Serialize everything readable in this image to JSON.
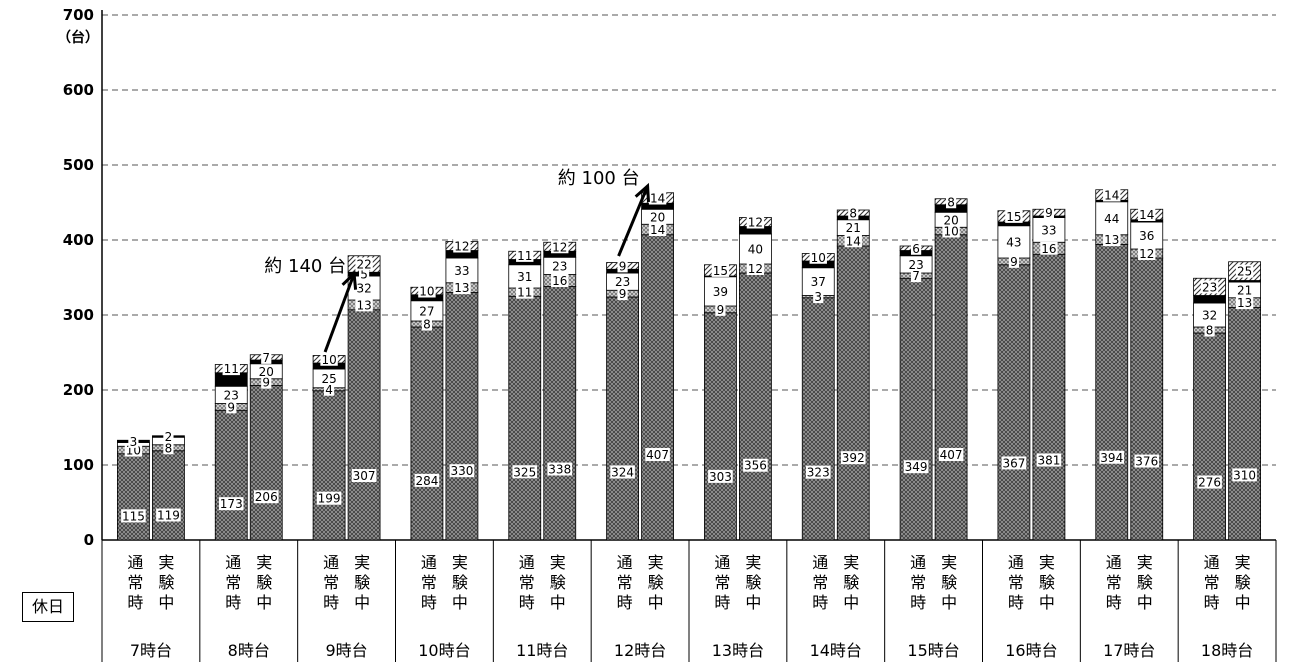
{
  "row_label": "休日",
  "y_unit": "（台）",
  "chart_data": {
    "type": "bar",
    "stacked": true,
    "ylim": [
      0,
      700
    ],
    "yticks": [
      0,
      100,
      200,
      300,
      400,
      500,
      600,
      700
    ],
    "grid": "dashed horizontal",
    "condition_labels": [
      [
        "通",
        "常",
        "時"
      ],
      [
        "実",
        "験",
        "中"
      ]
    ],
    "groups": [
      {
        "label": "7時台",
        "bars": [
          {
            "segments": [
              115,
              10,
              5,
              3
            ],
            "labels": [
              "115",
              "10",
              "",
              "3"
            ]
          },
          {
            "segments": [
              119,
              8,
              10,
              2
            ],
            "labels": [
              "119",
              "8",
              "",
              "2"
            ]
          }
        ]
      },
      {
        "label": "8時台",
        "bars": [
          {
            "segments": [
              173,
              9,
              23,
              18,
              11
            ],
            "labels": [
              "173",
              "9",
              "23",
              "",
              "11"
            ]
          },
          {
            "segments": [
              206,
              9,
              20,
              5,
              7
            ],
            "labels": [
              "206",
              "9",
              "20",
              "",
              "7"
            ]
          }
        ]
      },
      {
        "label": "9時台",
        "bars": [
          {
            "segments": [
              199,
              4,
              25,
              8,
              10
            ],
            "labels": [
              "199",
              "4",
              "25",
              "",
              "10"
            ]
          },
          {
            "segments": [
              307,
              13,
              32,
              5,
              22
            ],
            "labels": [
              "307",
              "13",
              "32",
              "5",
              "22"
            ]
          }
        ]
      },
      {
        "label": "10時台",
        "bars": [
          {
            "segments": [
              284,
              8,
              27,
              8,
              10
            ],
            "labels": [
              "284",
              "8",
              "27",
              "",
              "10"
            ]
          },
          {
            "segments": [
              330,
              13,
              33,
              10,
              12
            ],
            "labels": [
              "330",
              "13",
              "33",
              "",
              "12"
            ]
          }
        ]
      },
      {
        "label": "11時台",
        "bars": [
          {
            "segments": [
              325,
              11,
              31,
              7,
              11
            ],
            "labels": [
              "325",
              "11",
              "31",
              "",
              "11"
            ]
          },
          {
            "segments": [
              338,
              16,
              23,
              8,
              12
            ],
            "labels": [
              "338",
              "16",
              "23",
              "",
              "12"
            ]
          }
        ]
      },
      {
        "label": "12時台",
        "bars": [
          {
            "segments": [
              324,
              9,
              23,
              5,
              9
            ],
            "labels": [
              "324",
              "9",
              "23",
              "",
              "9"
            ]
          },
          {
            "segments": [
              407,
              14,
              20,
              8,
              14
            ],
            "labels": [
              "407",
              "14",
              "20",
              "",
              "14"
            ]
          }
        ]
      },
      {
        "label": "13時台",
        "bars": [
          {
            "segments": [
              303,
              9,
              39,
              1,
              15
            ],
            "labels": [
              "303",
              "9",
              "39",
              "",
              "15"
            ]
          },
          {
            "segments": [
              356,
              12,
              40,
              10,
              12
            ],
            "labels": [
              "356",
              "12",
              "40",
              "",
              "12"
            ]
          }
        ]
      },
      {
        "label": "14時台",
        "bars": [
          {
            "segments": [
              323,
              3,
              37,
              9,
              10
            ],
            "labels": [
              "323",
              "3",
              "37",
              "",
              "10"
            ]
          },
          {
            "segments": [
              392,
              14,
              21,
              5,
              8
            ],
            "labels": [
              "392",
              "14",
              "21",
              "",
              "8"
            ]
          }
        ]
      },
      {
        "label": "15時台",
        "bars": [
          {
            "segments": [
              349,
              7,
              23,
              7,
              6
            ],
            "labels": [
              "349",
              "7",
              "23",
              "",
              "6"
            ]
          },
          {
            "segments": [
              407,
              10,
              20,
              10,
              8
            ],
            "labels": [
              "407",
              "10",
              "20",
              "",
              "8"
            ]
          }
        ]
      },
      {
        "label": "16時台",
        "bars": [
          {
            "segments": [
              367,
              9,
              43,
              5,
              15
            ],
            "labels": [
              "367",
              "9",
              "43",
              "",
              "15"
            ]
          },
          {
            "segments": [
              381,
              16,
              33,
              2,
              9
            ],
            "labels": [
              "381",
              "16",
              "33",
              "",
              "9"
            ]
          }
        ]
      },
      {
        "label": "17時台",
        "bars": [
          {
            "segments": [
              394,
              13,
              44,
              2,
              14
            ],
            "labels": [
              "394",
              "13",
              "44",
              "",
              "14"
            ]
          },
          {
            "segments": [
              376,
              12,
              36,
              3,
              14
            ],
            "labels": [
              "376",
              "12",
              "36",
              "",
              "14"
            ]
          }
        ]
      },
      {
        "label": "18時台",
        "bars": [
          {
            "segments": [
              276,
              8,
              32,
              10,
              23
            ],
            "labels": [
              "276",
              "8",
              "32",
              "",
              "23"
            ]
          },
          {
            "segments": [
              310,
              13,
              21,
              2,
              25
            ],
            "labels": [
              "310",
              "13",
              "21",
              "",
              "25"
            ]
          }
        ]
      }
    ],
    "annotations": [
      {
        "text": "約 140 台",
        "group": 2,
        "from": 240,
        "to": 355
      },
      {
        "text": "約 100 台",
        "group": 5,
        "from": 368,
        "to": 472
      }
    ],
    "segment_styles": [
      "dark-crosshatch",
      "crosshatch",
      "white",
      "black",
      "diagonal-hatch"
    ]
  }
}
